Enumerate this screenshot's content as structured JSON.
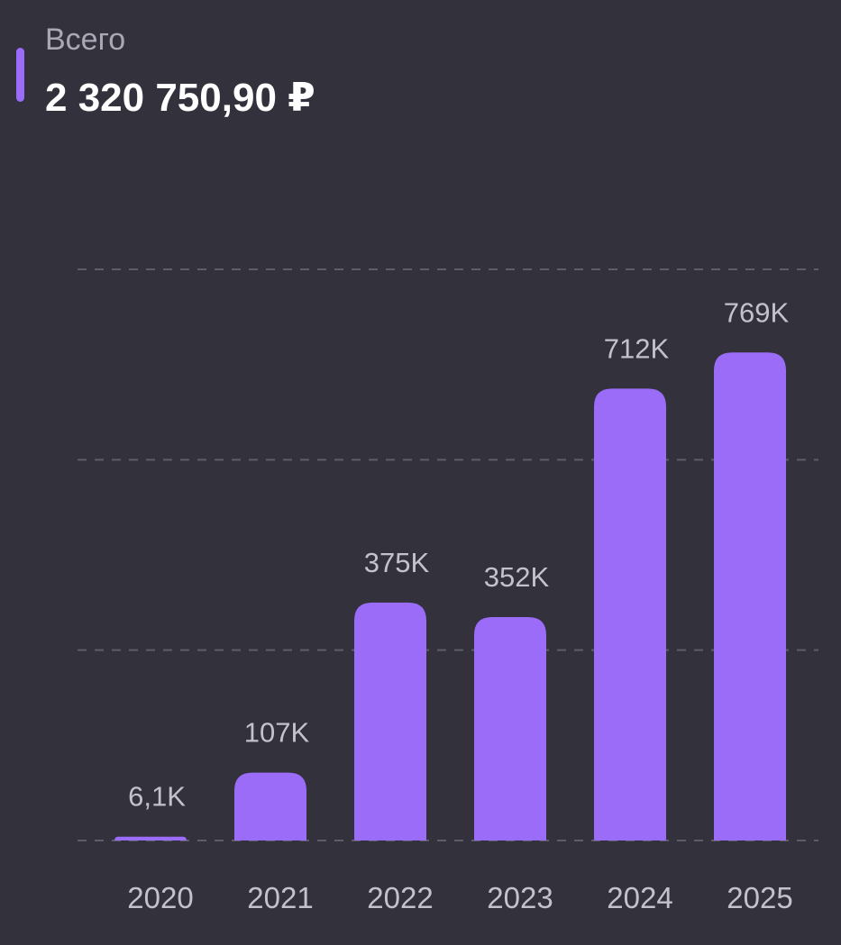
{
  "header": {
    "label": "Всего",
    "total": "2 320 750,90 ₽"
  },
  "colors": {
    "background": "#32313c",
    "bar": "#9a6cf8",
    "grid": "#5d5c69",
    "text_muted": "#c3c2cc"
  },
  "chart_data": {
    "type": "bar",
    "categories": [
      "2020",
      "2021",
      "2022",
      "2023",
      "2024",
      "2025"
    ],
    "values": [
      6100,
      107000,
      375000,
      352000,
      712000,
      769000
    ],
    "value_labels": [
      "6,1K",
      "107K",
      "375K",
      "352K",
      "712K",
      "769K"
    ],
    "ylim": [
      0,
      900000
    ],
    "grid": true,
    "grid_values": [
      0,
      300000,
      600000,
      900000
    ],
    "title": "",
    "xlabel": "",
    "ylabel": ""
  }
}
